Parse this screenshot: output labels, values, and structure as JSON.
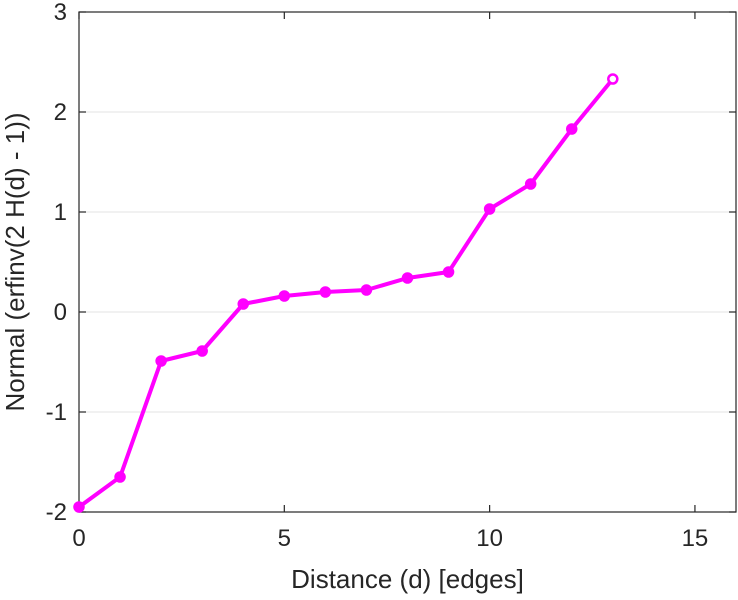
{
  "chart_data": {
    "type": "line",
    "xlabel": "Distance (d) [edges]",
    "ylabel": "Normal (erfinv(2 H(d) - 1))",
    "xlim": [
      0,
      16
    ],
    "ylim": [
      -2,
      3
    ],
    "xticks": [
      0,
      5,
      10,
      15
    ],
    "xtick_labels": [
      "0",
      "5",
      "10",
      "15"
    ],
    "yticks": [
      -2,
      -1,
      0,
      1,
      2,
      3
    ],
    "ytick_labels": [
      "-2",
      "-1",
      "0",
      "1",
      "2",
      "3"
    ],
    "grid": "horizontal",
    "series": [
      {
        "color": "#ff00ff",
        "marker": "circle",
        "x": [
          0,
          1,
          2,
          3,
          4,
          5,
          6,
          7,
          8,
          9,
          10,
          11,
          12,
          13
        ],
        "y": [
          -1.95,
          -1.65,
          -0.49,
          -0.39,
          0.08,
          0.16,
          0.2,
          0.22,
          0.34,
          0.4,
          1.03,
          1.28,
          1.83,
          2.33
        ]
      }
    ]
  }
}
